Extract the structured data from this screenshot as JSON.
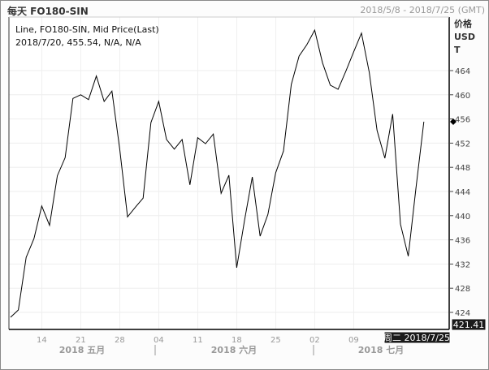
{
  "header": {
    "title": "每天 FO180-SIN",
    "range": "2018/5/8 - 2018/7/25 (GMT)"
  },
  "legend": {
    "line1": "Line, FO180-SIN, Mid Price(Last)",
    "line2": "2018/7/20, 455.54, N/A, N/A"
  },
  "axis_unit": [
    "价格",
    "USD",
    "T"
  ],
  "cursor": {
    "date_label": "周二 2018/7/25",
    "price_label": "421.41"
  },
  "colors": {
    "line": "#000000",
    "grid": "#eeeeee",
    "label_box": "#1a1a1a"
  },
  "chart_data": {
    "type": "line",
    "grid": true,
    "ylim": [
      421,
      473
    ],
    "yticks": [
      424,
      428,
      432,
      436,
      440,
      444,
      448,
      452,
      456,
      460,
      464
    ],
    "xticks": [
      {
        "date": "2018-05-14",
        "label": "14"
      },
      {
        "date": "2018-05-21",
        "label": "21"
      },
      {
        "date": "2018-05-28",
        "label": "28"
      },
      {
        "date": "2018-06-04",
        "label": "04"
      },
      {
        "date": "2018-06-11",
        "label": "11"
      },
      {
        "date": "2018-06-18",
        "label": "18"
      },
      {
        "date": "2018-06-25",
        "label": "25"
      },
      {
        "date": "2018-07-02",
        "label": "02"
      },
      {
        "date": "2018-07-09",
        "label": "09"
      }
    ],
    "months": [
      {
        "label": "2018 五月"
      },
      {
        "label": "2018 六月"
      },
      {
        "label": "2018 七月"
      }
    ],
    "dates": [
      "2018-05-08",
      "2018-05-09",
      "2018-05-10",
      "2018-05-11",
      "2018-05-14",
      "2018-05-15",
      "2018-05-16",
      "2018-05-17",
      "2018-05-18",
      "2018-05-21",
      "2018-05-22",
      "2018-05-23",
      "2018-05-24",
      "2018-05-25",
      "2018-05-28",
      "2018-05-29",
      "2018-05-30",
      "2018-05-31",
      "2018-06-01",
      "2018-06-04",
      "2018-06-05",
      "2018-06-06",
      "2018-06-07",
      "2018-06-08",
      "2018-06-11",
      "2018-06-12",
      "2018-06-13",
      "2018-06-14",
      "2018-06-15",
      "2018-06-18",
      "2018-06-19",
      "2018-06-20",
      "2018-06-21",
      "2018-06-22",
      "2018-06-25",
      "2018-06-26",
      "2018-06-27",
      "2018-06-28",
      "2018-06-29",
      "2018-07-02",
      "2018-07-03",
      "2018-07-04",
      "2018-07-05",
      "2018-07-06",
      "2018-07-09",
      "2018-07-10",
      "2018-07-11",
      "2018-07-12",
      "2018-07-13",
      "2018-07-16",
      "2018-07-17",
      "2018-07-18",
      "2018-07-19",
      "2018-07-20"
    ],
    "values": [
      423.2,
      424.4,
      433.1,
      436.2,
      441.6,
      438.4,
      446.6,
      449.6,
      459.4,
      460.0,
      459.2,
      463.1,
      458.9,
      460.6,
      451.0,
      439.8,
      441.4,
      442.9,
      455.4,
      458.9,
      452.6,
      451.0,
      452.6,
      445.1,
      452.9,
      451.9,
      453.5,
      443.7,
      446.7,
      431.4,
      439.2,
      446.4,
      436.6,
      440.2,
      447.1,
      450.7,
      461.7,
      466.4,
      468.3,
      470.7,
      465.3,
      461.6,
      460.9,
      463.9,
      467.1,
      470.2,
      463.7,
      454.1,
      449.5,
      456.8,
      438.6,
      433.3,
      444.7,
      455.54
    ]
  }
}
